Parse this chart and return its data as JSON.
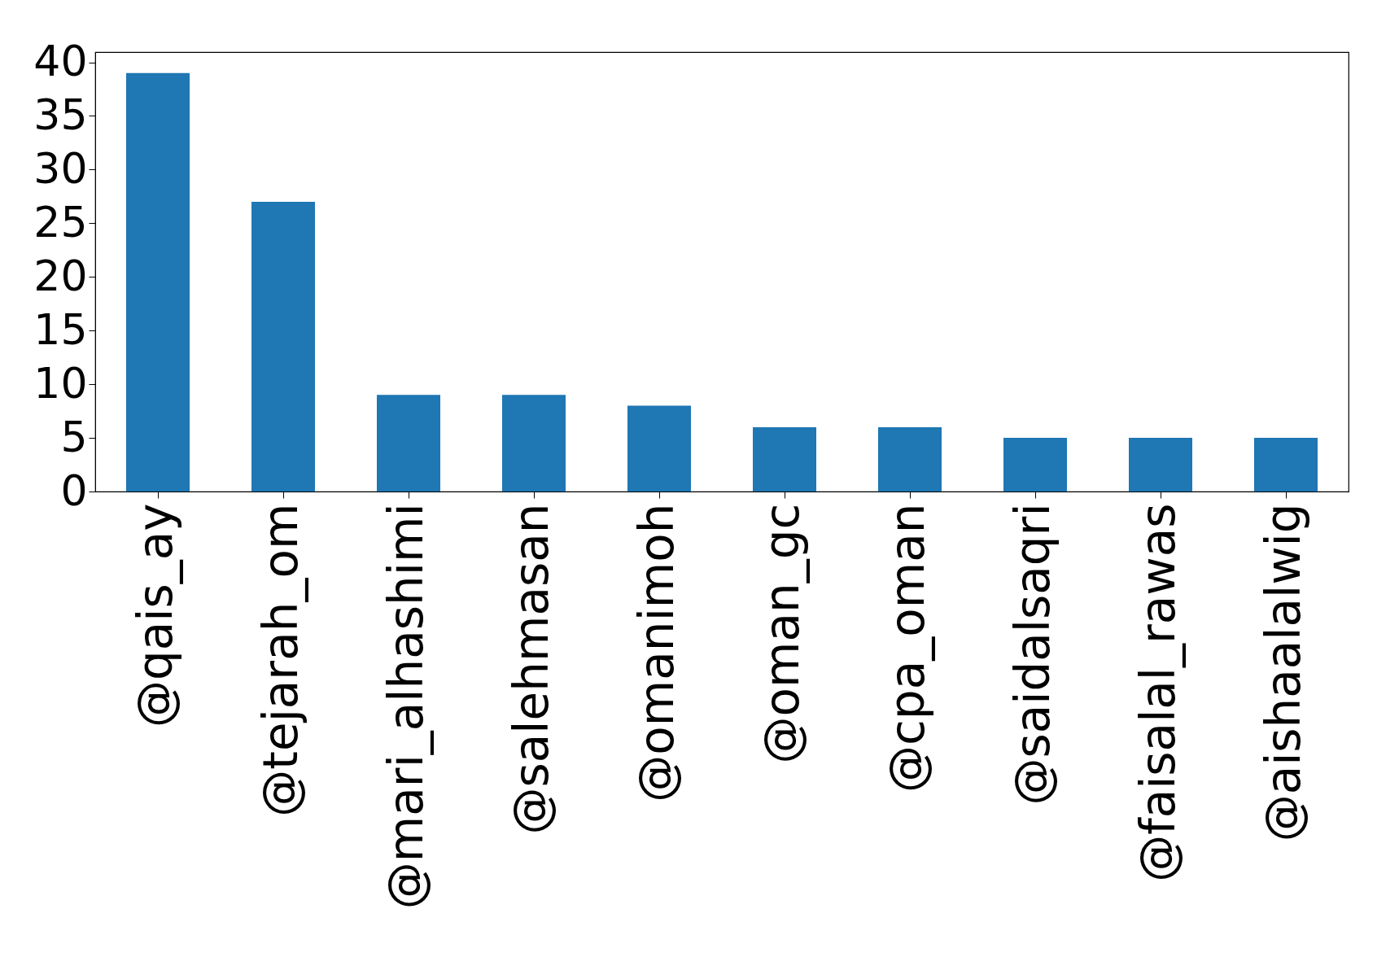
{
  "chart_data": {
    "type": "bar",
    "categories": [
      "@qais_ay",
      "@tejarah_om",
      "@mari_alhashimi",
      "@salehmasan",
      "@omanimoh",
      "@oman_gc",
      "@cpa_oman",
      "@saidalsaqri",
      "@faisalal_rawas",
      "@aishaalalwig"
    ],
    "values": [
      39,
      27,
      9,
      9,
      8,
      6,
      6,
      5,
      5,
      5
    ],
    "color": "#1f77b4",
    "ylim": [
      0,
      40.95
    ],
    "yticks": [
      0,
      5,
      10,
      15,
      20,
      25,
      30,
      35,
      40
    ],
    "grid": false
  }
}
